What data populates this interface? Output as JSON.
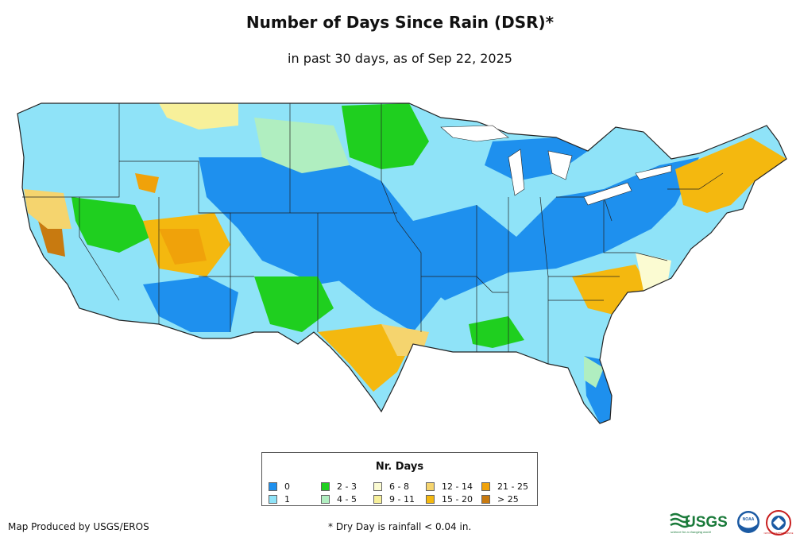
{
  "title": "Number of Days Since Rain (DSR)*",
  "subtitle": "in past 30 days, as of Sep 22, 2025",
  "legend": {
    "title": "Nr. Days",
    "items": [
      {
        "label": "0",
        "color": "#1e90ee"
      },
      {
        "label": "1",
        "color": "#8fe3f8"
      },
      {
        "label": "2 - 3",
        "color": "#1fcf1f"
      },
      {
        "label": "4 - 5",
        "color": "#b0eec0"
      },
      {
        "label": "6 - 8",
        "color": "#fbfbd2"
      },
      {
        "label": "9 - 11",
        "color": "#f7f09a"
      },
      {
        "label": "12 - 14",
        "color": "#f5d46e"
      },
      {
        "label": "15 - 20",
        "color": "#f4b80f"
      },
      {
        "label": "21 - 25",
        "color": "#f0a20a"
      },
      {
        "label": "> 25",
        "color": "#c87a10"
      }
    ]
  },
  "footer": {
    "credit": "Map Produced by USGS/EROS",
    "note": "* Dry Day is rainfall < 0.04 in."
  },
  "logos": {
    "usgs": "USGS",
    "usgs_tagline": "science for a changing world",
    "noaa": "NOAA",
    "nws": "NATIONAL WEATHER SERVICE"
  }
}
